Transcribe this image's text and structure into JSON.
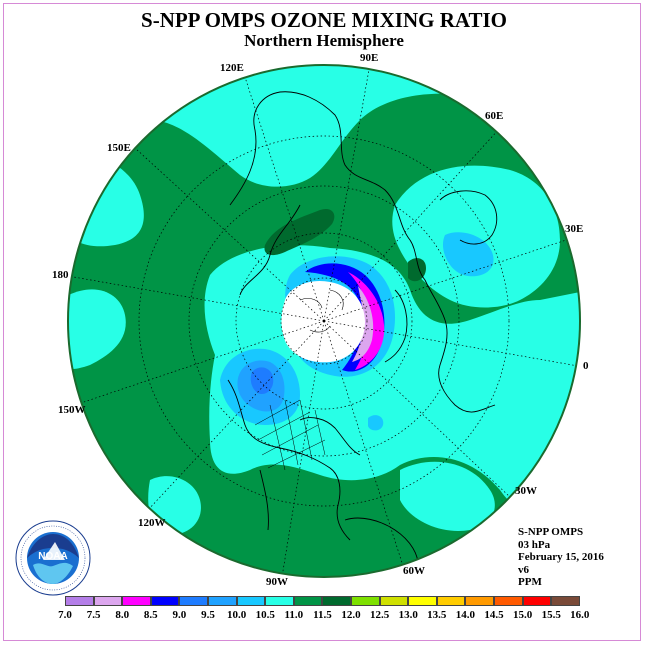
{
  "header": {
    "title": "S-NPP OMPS OZONE MIXING RATIO",
    "subtitle": "Northern Hemisphere"
  },
  "longitude_labels": {
    "lon_90e": "90E",
    "lon_60e": "60E",
    "lon_30e": "30E",
    "lon_0": "0",
    "lon_30w": "30W",
    "lon_60w": "60W",
    "lon_90w": "90W",
    "lon_120w": "120W",
    "lon_150w": "150W",
    "lon_180": "180",
    "lon_150e": "150E",
    "lon_120e": "120E"
  },
  "info": {
    "instrument": "S-NPP OMPS",
    "level": "03 hPa",
    "date": "February 15, 2016",
    "version": "v6",
    "units": "PPM"
  },
  "logo": {
    "text": "NOAA",
    "ring_text": "NATIONAL OCEANIC AND ATMOSPHERIC ADMINISTRATION · U.S. DEPARTMENT OF COMMERCE"
  },
  "colorbar": {
    "ticks": [
      "7.0",
      "7.5",
      "8.0",
      "8.5",
      "9.0",
      "9.5",
      "10.0",
      "10.5",
      "11.0",
      "11.5",
      "12.0",
      "12.5",
      "13.0",
      "13.5",
      "14.0",
      "14.5",
      "15.0",
      "15.5",
      "16.0"
    ],
    "colors": [
      "#b47ee8",
      "#dca6ee",
      "#ff00ff",
      "#0000ff",
      "#1e7cff",
      "#20a2ff",
      "#18c8ff",
      "#28ffe6",
      "#009446",
      "#006a2e",
      "#7ee000",
      "#cfe000",
      "#ffff00",
      "#ffcc00",
      "#ff9a00",
      "#ff5a00",
      "#ff0000",
      "#7a4a38"
    ]
  }
}
